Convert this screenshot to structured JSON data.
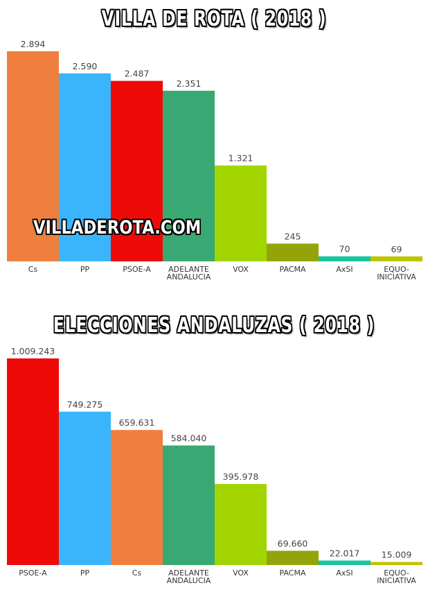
{
  "chart_data": [
    {
      "type": "bar",
      "title": "VILLA DE ROTA ( 2018 )",
      "categories": [
        "Cs",
        "PP",
        "PSOE-A",
        "ADELANTE ANDALUCIA",
        "VOX",
        "PACMA",
        "AxSI",
        "EQUO-INICIATIVA"
      ],
      "category_lines": [
        [
          "Cs"
        ],
        [
          "PP"
        ],
        [
          "PSOE-A"
        ],
        [
          "ADELANTE",
          "ANDALUCIA"
        ],
        [
          "VOX"
        ],
        [
          "PACMA"
        ],
        [
          "AxSI"
        ],
        [
          "EQUO-",
          "INICIATIVA"
        ]
      ],
      "values": [
        2894,
        2590,
        2487,
        2351,
        1321,
        245,
        70,
        69
      ],
      "value_labels": [
        "2.894",
        "2.590",
        "2.487",
        "2.351",
        "1.321",
        "245",
        "70",
        "69"
      ],
      "colors": [
        "#ee7f3f",
        "#3ab5fc",
        "#ee0b07",
        "#39a872",
        "#a2d500",
        "#93a40a",
        "#19c4a0",
        "#bfc400"
      ],
      "ylim": [
        0,
        2894
      ],
      "grid": false,
      "legend": "none"
    },
    {
      "type": "bar",
      "title": "ELECCIONES ANDALUZAS ( 2018 )",
      "categories": [
        "PSOE-A",
        "PP",
        "Cs",
        "ADELANTE ANDALUCIA",
        "VOX",
        "PACMA",
        "AxSI",
        "EQUO-INICIATIVA"
      ],
      "category_lines": [
        [
          "PSOE-A"
        ],
        [
          "PP"
        ],
        [
          "Cs"
        ],
        [
          "ADELANTE",
          "ANDALUCIA"
        ],
        [
          "VOX"
        ],
        [
          "PACMA"
        ],
        [
          "AxSI"
        ],
        [
          "EQUO-",
          "INICIATIVA"
        ]
      ],
      "values": [
        1009243,
        749275,
        659631,
        584040,
        395978,
        69660,
        22017,
        15009
      ],
      "value_labels": [
        "1.009.243",
        "749.275",
        "659.631",
        "584.040",
        "395.978",
        "69.660",
        "22.017",
        "15.009"
      ],
      "colors": [
        "#ee0b07",
        "#3ab5fc",
        "#ee7f3f",
        "#39a872",
        "#a2d500",
        "#93a40a",
        "#19c4a0",
        "#bfc400"
      ],
      "ylim": [
        0,
        1009243
      ],
      "grid": false,
      "legend": "none"
    }
  ],
  "watermark": "VILLADEROTA.COM"
}
